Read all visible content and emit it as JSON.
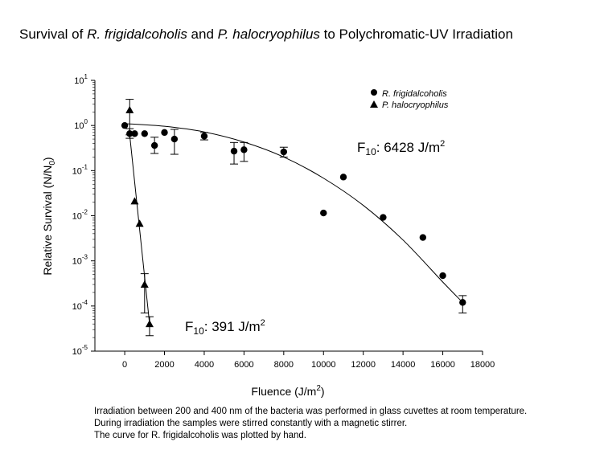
{
  "title": {
    "pre": "Survival of ",
    "species1": "R. frigidalcoholis",
    "mid": " and ",
    "species2": "P. halocryophilus",
    "post": " to Polychromatic-UV Irradiation"
  },
  "caption": [
    "Irradiation between 200 and 400 nm of the bacteria was performed in glass cuvettes at room temperature.",
    "During irradiation the samples were stirred constantly with a magnetic stirrer.",
    "The curve for R. frigidalcoholis was plotted by hand."
  ],
  "annotations": {
    "rf": {
      "label": "F",
      "sub": "10",
      "value": ": 6428 J/m",
      "sup": "2"
    },
    "ph": {
      "label": "F",
      "sub": "10",
      "value": ": 391 J/m",
      "sup": "2"
    }
  },
  "chart_data": {
    "type": "scatter",
    "title": "Survival of R. frigidalcoholis and P. halocryophilus to Polychromatic-UV Irradiation",
    "xlabel": "Fluence (J/m2)",
    "ylabel": "Relative Survival (N/N0)",
    "xlim": [
      -1500,
      18000
    ],
    "ylim": [
      1e-05,
      10
    ],
    "yscale": "log",
    "xticks": [
      0,
      2000,
      4000,
      6000,
      8000,
      10000,
      12000,
      14000,
      16000,
      18000
    ],
    "yticks": [
      {
        "value": 10,
        "base": "10",
        "exp": "1"
      },
      {
        "value": 1,
        "base": "10",
        "exp": "0"
      },
      {
        "value": 0.1,
        "base": "10",
        "exp": "-1"
      },
      {
        "value": 0.01,
        "base": "10",
        "exp": "-2"
      },
      {
        "value": 0.001,
        "base": "10",
        "exp": "-3"
      },
      {
        "value": 0.0001,
        "base": "10",
        "exp": "-4"
      },
      {
        "value": 1e-05,
        "base": "10",
        "exp": "-5"
      }
    ],
    "legend_position": "top-right",
    "grid": false,
    "series": [
      {
        "name": "R. frigidalcoholis",
        "marker": "circle",
        "points": [
          {
            "x": 0,
            "y": 1.0
          },
          {
            "x": 250,
            "y": 0.66,
            "err": [
              0.52,
              0.85
            ]
          },
          {
            "x": 500,
            "y": 0.66
          },
          {
            "x": 1000,
            "y": 0.66
          },
          {
            "x": 1500,
            "y": 0.36,
            "err": [
              0.24,
              0.55
            ]
          },
          {
            "x": 2000,
            "y": 0.7
          },
          {
            "x": 2500,
            "y": 0.5,
            "err": [
              0.23,
              0.82
            ]
          },
          {
            "x": 4000,
            "y": 0.58,
            "err": [
              0.48,
              0.7
            ]
          },
          {
            "x": 5500,
            "y": 0.27,
            "err": [
              0.14,
              0.42
            ]
          },
          {
            "x": 6000,
            "y": 0.29,
            "err": [
              0.16,
              0.42
            ]
          },
          {
            "x": 8000,
            "y": 0.26,
            "err": [
              0.2,
              0.33
            ]
          },
          {
            "x": 10000,
            "y": 0.0115
          },
          {
            "x": 11000,
            "y": 0.072
          },
          {
            "x": 13000,
            "y": 0.0092
          },
          {
            "x": 15000,
            "y": 0.0033
          },
          {
            "x": 16000,
            "y": 0.00047
          },
          {
            "x": 17000,
            "y": 0.00012,
            "err": [
              7e-05,
              0.00017
            ]
          }
        ],
        "curve": {
          "x": [
            0,
            2000,
            4000,
            6000,
            8000,
            10000,
            12000,
            14000,
            16000,
            17000
          ],
          "y": [
            1.1,
            0.96,
            0.72,
            0.43,
            0.2,
            0.068,
            0.017,
            0.0029,
            0.00034,
            0.00012
          ]
        }
      },
      {
        "name": "P. halocryophilus",
        "marker": "triangle",
        "points": [
          {
            "x": 250,
            "y": 2.2,
            "err": [
              0.62,
              3.8
            ]
          },
          {
            "x": 500,
            "y": 0.021
          },
          {
            "x": 750,
            "y": 0.0067
          },
          {
            "x": 1000,
            "y": 0.0003,
            "err": [
              7e-05,
              0.00052
            ]
          },
          {
            "x": 1250,
            "y": 4e-05,
            "err": [
              2.2e-05,
              5.8e-05
            ]
          }
        ],
        "curve": {
          "x": [
            250,
            1250
          ],
          "y": [
            0.62,
            4e-05
          ]
        }
      }
    ]
  }
}
